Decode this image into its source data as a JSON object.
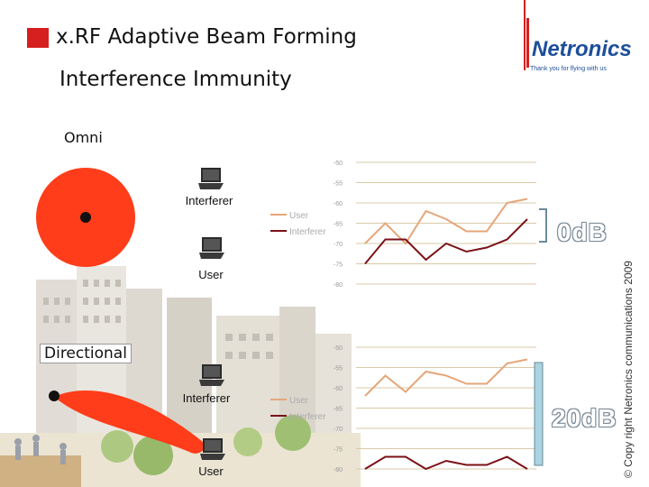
{
  "header": {
    "title": "x.RF Adaptive Beam Forming",
    "subtitle": "Interference Immunity"
  },
  "logo": {
    "brand": "Netronics",
    "tagline": "Thank you for flying with us"
  },
  "side_note": "© Copy right Netronics communications 2009",
  "omni": {
    "label": "Omni",
    "interferer_label": "Interferer",
    "user_label": "User",
    "db_label": "0dB"
  },
  "directional": {
    "label": "Directional",
    "interferer_label": "Interferer",
    "user_label": "User",
    "db_label": "20dB"
  },
  "colors": {
    "accent_red": "#d61f1f",
    "omni_circle": "#ff3d1a",
    "user_line": "#e5a679",
    "interferer_line": "#7b1218",
    "db_bracket": "#aad4e0"
  },
  "chart_data": [
    {
      "type": "line",
      "yticks": [
        "-50",
        "-55",
        "-60",
        "-65",
        "-70",
        "-75",
        "-80"
      ],
      "ylim": [
        -80,
        -50
      ],
      "series": [
        {
          "name": "User",
          "values": [
            -70,
            -65,
            -70,
            -62,
            -64,
            -67,
            -67,
            -60,
            -59
          ]
        },
        {
          "name": "Interferer",
          "values": [
            -75,
            -69,
            -69,
            -74,
            -70,
            -72,
            -71,
            -69,
            -64
          ]
        }
      ],
      "legend": [
        "User",
        "Interferer"
      ],
      "legend_position": "left"
    },
    {
      "type": "line",
      "yticks": [
        "-50",
        "-55",
        "-60",
        "-65",
        "-70",
        "-75",
        "-80"
      ],
      "ylim": [
        -80,
        -50
      ],
      "series": [
        {
          "name": "User",
          "values": [
            -62,
            -57,
            -61,
            -56,
            -57,
            -59,
            -59,
            -54,
            -53
          ]
        },
        {
          "name": "Interferer",
          "values": [
            -80,
            -77,
            -77,
            -80,
            -78,
            -79,
            -79,
            -77,
            -80
          ]
        }
      ],
      "legend": [
        "User",
        "Interferer"
      ],
      "legend_position": "left"
    }
  ]
}
